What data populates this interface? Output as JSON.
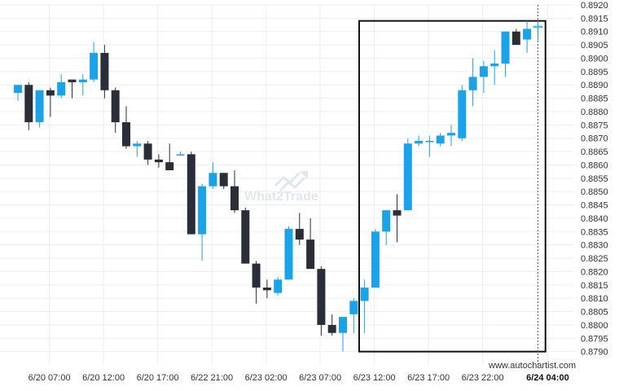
{
  "chart_data": {
    "type": "candlestick",
    "watermark": "What2Trade",
    "source": "www.autochartist.com",
    "colors": {
      "up": "#1aa3e8",
      "down": "#2a2e39",
      "grid": "#ededed",
      "highlight_box": "#111111",
      "text": "#333333"
    },
    "ylim": [
      0.8785,
      0.892
    ],
    "yticks": [
      "0.8790",
      "0.8795",
      "0.8800",
      "0.8805",
      "0.8810",
      "0.8815",
      "0.8820",
      "0.8825",
      "0.8830",
      "0.8835",
      "0.8840",
      "0.8845",
      "0.8850",
      "0.8855",
      "0.8860",
      "0.8865",
      "0.8870",
      "0.8875",
      "0.8880",
      "0.8885",
      "0.8890",
      "0.8895",
      "0.8900",
      "0.8905",
      "0.8910",
      "0.8915",
      "0.8920"
    ],
    "xticks": [
      {
        "label": "6/20 07:00",
        "index": 2
      },
      {
        "label": "6/20 12:00",
        "index": 7
      },
      {
        "label": "6/20 17:00",
        "index": 12
      },
      {
        "label": "6/22 21:00",
        "index": 17
      },
      {
        "label": "6/23 02:00",
        "index": 22
      },
      {
        "label": "6/23 07:00",
        "index": 27
      },
      {
        "label": "6/23 12:00",
        "index": 32
      },
      {
        "label": "6/23 17:00",
        "index": 37
      },
      {
        "label": "6/23 22:00",
        "index": 42
      },
      {
        "label": "6/24 04:00",
        "index": 48,
        "bold": true
      }
    ],
    "highlight_range": {
      "from_index": 31.5,
      "to_index": 48.7,
      "low": 0.879,
      "high": 0.8914
    },
    "current_time_index": 48,
    "candles": [
      {
        "o": 0.8887,
        "h": 0.889,
        "l": 0.8884,
        "c": 0.889
      },
      {
        "o": 0.889,
        "h": 0.8891,
        "l": 0.8873,
        "c": 0.8876
      },
      {
        "o": 0.8876,
        "h": 0.8888,
        "l": 0.8874,
        "c": 0.8888
      },
      {
        "o": 0.8888,
        "h": 0.8889,
        "l": 0.8878,
        "c": 0.8886
      },
      {
        "o": 0.8886,
        "h": 0.8894,
        "l": 0.8885,
        "c": 0.8891
      },
      {
        "o": 0.8892,
        "h": 0.8892,
        "l": 0.8885,
        "c": 0.8891
      },
      {
        "o": 0.8891,
        "h": 0.8894,
        "l": 0.8886,
        "c": 0.8892
      },
      {
        "o": 0.8892,
        "h": 0.8906,
        "l": 0.8891,
        "c": 0.8902
      },
      {
        "o": 0.8902,
        "h": 0.8905,
        "l": 0.8885,
        "c": 0.8888
      },
      {
        "o": 0.8888,
        "h": 0.8889,
        "l": 0.8872,
        "c": 0.8876
      },
      {
        "o": 0.8876,
        "h": 0.8882,
        "l": 0.8866,
        "c": 0.8867
      },
      {
        "o": 0.8867,
        "h": 0.8869,
        "l": 0.8863,
        "c": 0.8868
      },
      {
        "o": 0.8868,
        "h": 0.8869,
        "l": 0.886,
        "c": 0.8862
      },
      {
        "o": 0.8862,
        "h": 0.8864,
        "l": 0.8859,
        "c": 0.8861
      },
      {
        "o": 0.8861,
        "h": 0.8868,
        "l": 0.8858,
        "c": 0.8858
      },
      {
        "o": 0.8864,
        "h": 0.8865,
        "l": 0.8864,
        "c": 0.8864
      },
      {
        "o": 0.8864,
        "h": 0.8865,
        "l": 0.8834,
        "c": 0.8834
      },
      {
        "o": 0.8834,
        "h": 0.8853,
        "l": 0.8824,
        "c": 0.8852
      },
      {
        "o": 0.8852,
        "h": 0.8861,
        "l": 0.8851,
        "c": 0.8857
      },
      {
        "o": 0.8857,
        "h": 0.8857,
        "l": 0.8851,
        "c": 0.8852
      },
      {
        "o": 0.8852,
        "h": 0.8858,
        "l": 0.8842,
        "c": 0.8843
      },
      {
        "o": 0.8843,
        "h": 0.8844,
        "l": 0.8823,
        "c": 0.8823
      },
      {
        "o": 0.8823,
        "h": 0.8824,
        "l": 0.8808,
        "c": 0.8814
      },
      {
        "o": 0.8814,
        "h": 0.8817,
        "l": 0.881,
        "c": 0.8813
      },
      {
        "o": 0.8812,
        "h": 0.8818,
        "l": 0.8811,
        "c": 0.8817
      },
      {
        "o": 0.8817,
        "h": 0.8837,
        "l": 0.8817,
        "c": 0.8836
      },
      {
        "o": 0.8836,
        "h": 0.8842,
        "l": 0.883,
        "c": 0.8832
      },
      {
        "o": 0.8832,
        "h": 0.884,
        "l": 0.8821,
        "c": 0.8821
      },
      {
        "o": 0.8821,
        "h": 0.8822,
        "l": 0.8796,
        "c": 0.88
      },
      {
        "o": 0.88,
        "h": 0.8804,
        "l": 0.8796,
        "c": 0.8797
      },
      {
        "o": 0.8797,
        "h": 0.8803,
        "l": 0.879,
        "c": 0.8803
      },
      {
        "o": 0.8804,
        "h": 0.881,
        "l": 0.8797,
        "c": 0.8809
      },
      {
        "o": 0.8809,
        "h": 0.8817,
        "l": 0.8797,
        "c": 0.8814
      },
      {
        "o": 0.8814,
        "h": 0.8836,
        "l": 0.8814,
        "c": 0.8835
      },
      {
        "o": 0.8835,
        "h": 0.8843,
        "l": 0.883,
        "c": 0.8843
      },
      {
        "o": 0.8843,
        "h": 0.8849,
        "l": 0.8831,
        "c": 0.8841
      },
      {
        "o": 0.8843,
        "h": 0.887,
        "l": 0.8843,
        "c": 0.8868
      },
      {
        "o": 0.8868,
        "h": 0.8871,
        "l": 0.8867,
        "c": 0.8869
      },
      {
        "o": 0.8869,
        "h": 0.8871,
        "l": 0.8863,
        "c": 0.8869
      },
      {
        "o": 0.8868,
        "h": 0.8872,
        "l": 0.8867,
        "c": 0.8871
      },
      {
        "o": 0.8871,
        "h": 0.8875,
        "l": 0.8867,
        "c": 0.8872
      },
      {
        "o": 0.887,
        "h": 0.889,
        "l": 0.8869,
        "c": 0.8888
      },
      {
        "o": 0.8888,
        "h": 0.89,
        "l": 0.8882,
        "c": 0.8893
      },
      {
        "o": 0.8893,
        "h": 0.8899,
        "l": 0.8887,
        "c": 0.8897
      },
      {
        "o": 0.8897,
        "h": 0.8903,
        "l": 0.889,
        "c": 0.8898
      },
      {
        "o": 0.8898,
        "h": 0.891,
        "l": 0.8893,
        "c": 0.891
      },
      {
        "o": 0.891,
        "h": 0.8911,
        "l": 0.8905,
        "c": 0.8905
      },
      {
        "o": 0.8907,
        "h": 0.8914,
        "l": 0.8902,
        "c": 0.8911
      },
      {
        "o": 0.8912,
        "h": 0.8914,
        "l": 0.8906,
        "c": 0.8912
      }
    ]
  }
}
